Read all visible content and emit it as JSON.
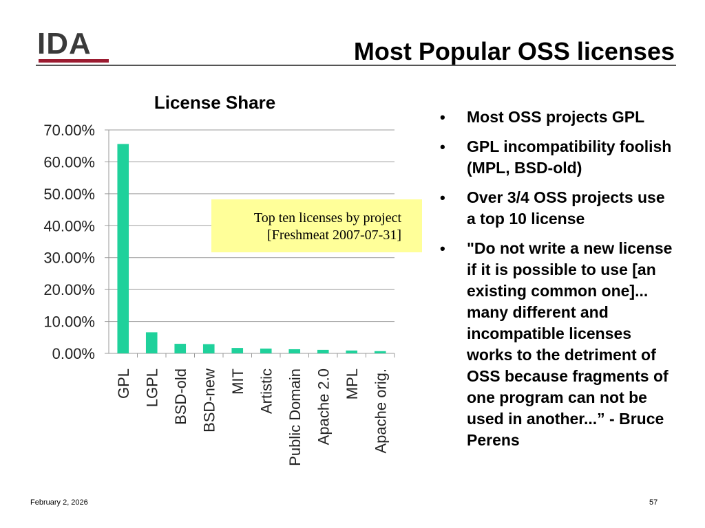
{
  "header": {
    "logo_text": "IDA",
    "title": "Most Popular OSS licenses"
  },
  "chart_data": {
    "type": "bar",
    "title": "License Share",
    "xlabel": "",
    "ylabel": "",
    "categories": [
      "GPL",
      "LGPL",
      "BSD-old",
      "BSD-new",
      "MIT",
      "Artistic",
      "Public Domain",
      "Apache 2.0",
      "MPL",
      "Apache orig."
    ],
    "values": [
      65.6,
      6.6,
      3.0,
      2.9,
      1.7,
      1.5,
      1.3,
      1.1,
      0.9,
      0.7
    ],
    "ylim": [
      0,
      70
    ],
    "yticks": [
      "0.00%",
      "10.00%",
      "20.00%",
      "30.00%",
      "40.00%",
      "50.00%",
      "60.00%",
      "70.00%"
    ],
    "grid": true,
    "bar_color": "#1fd19b",
    "grid_color": "#9a9a9a"
  },
  "note": {
    "line1": "Top ten licenses by project",
    "line2": "[Freshmeat 2007-07-31]"
  },
  "bullets": [
    {
      "text": "Most OSS projects GPL"
    },
    {
      "text": "GPL incompatibility foolish (MPL, BSD-old)"
    },
    {
      "text": "Over 3/4 OSS projects use a top 10 license"
    },
    {
      "text": "\"Do not write a new license if it is possible to use [an existing common one]... many different and incompatible licenses works to the detriment of OSS because fragments of one program can not be used in another...” - Bruce Perens"
    }
  ],
  "bullet_glyph": "•",
  "footer": {
    "date": "February 2, 2026",
    "page": "57"
  },
  "colors": {
    "logo_bar": "#9b1b30",
    "note_bg": "#ffff99"
  }
}
